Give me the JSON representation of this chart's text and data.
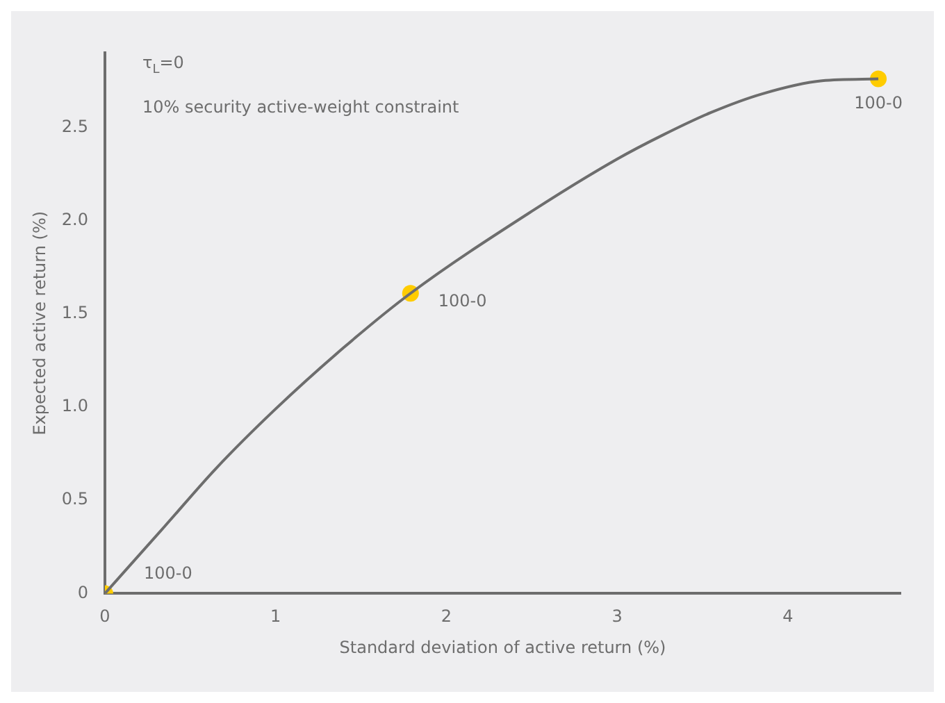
{
  "chart_data": {
    "type": "line",
    "xlabel": "Standard deviation of active return (%)",
    "ylabel": "Expected active return (%)",
    "xlim": [
      0,
      4.66
    ],
    "ylim": [
      0,
      2.9
    ],
    "xticks": [
      0,
      1,
      2,
      3,
      4
    ],
    "yticks": [
      0,
      0.5,
      {
        "value": 1,
        "label": "1.0"
      },
      1.5,
      {
        "value": 2,
        "label": "2.0"
      },
      2.5
    ],
    "grid": false,
    "legend": false,
    "series": [
      {
        "color": "#6d6d6d",
        "marker": "none",
        "x": [
          0,
          0.35,
          0.65,
          1,
          1.4,
          1.79,
          2.5,
          3,
          3.27,
          3.55,
          3.85,
          4.2,
          4.53
        ],
        "values": [
          0,
          0.36,
          0.67,
          0.99,
          1.32,
          1.61,
          2.05,
          2.33,
          2.46,
          2.58,
          2.68,
          2.75,
          2.76
        ]
      },
      {
        "type": "scatter",
        "color": "#ffcc00",
        "marker": "circle",
        "x": [
          0,
          1.79,
          4.53
        ],
        "values": [
          0,
          1.61,
          2.76
        ]
      }
    ],
    "annotations": [
      "τ$_{L}$=0",
      "10% security active-weight constraint",
      {
        "text": "100-0",
        "x": 0,
        "y": 0
      },
      {
        "text": "100-0",
        "x": 1.79,
        "y": 1.61
      },
      {
        "text": "100-0",
        "x": 4.53,
        "y": 2.76
      }
    ]
  }
}
